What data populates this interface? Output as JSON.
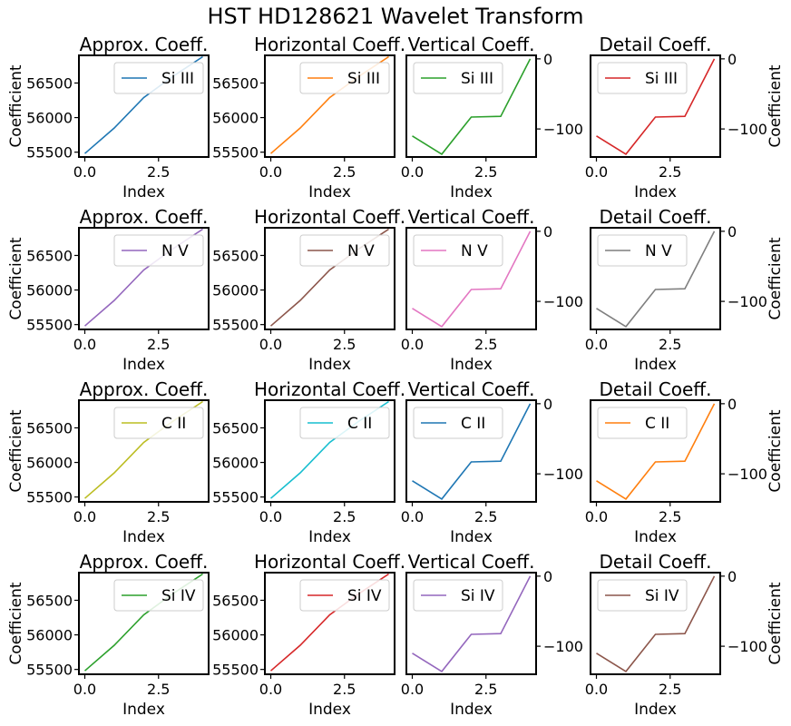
{
  "figure_title": "HST HD128621 Wavelet Transform",
  "chart_data": [
    {
      "type": "line",
      "title": "Approx. Coeff.",
      "xlabel": "Index",
      "ylabel": "Coefficient",
      "ylim": [
        55430,
        56900
      ],
      "yticks": [
        55500,
        56000,
        56500
      ],
      "xlim": [
        -0.2,
        4.2
      ],
      "xticks": [
        0,
        2.5
      ],
      "y_axis_side": "left",
      "legend": "top-right",
      "series": [
        {
          "name": "Si III",
          "color": "#1f77b4",
          "x": [
            0,
            1,
            2,
            3,
            4
          ],
          "y": [
            55480,
            55850,
            56290,
            56600,
            56880
          ]
        }
      ]
    },
    {
      "type": "line",
      "title": "Horizontal Coeff.",
      "xlabel": "Index",
      "ylabel": "",
      "ylim": [
        55430,
        56900
      ],
      "yticks": [
        55500,
        56000,
        56500
      ],
      "xlim": [
        -0.2,
        4.2
      ],
      "xticks": [
        0,
        2.5
      ],
      "y_axis_side": "left",
      "legend": "top-right",
      "series": [
        {
          "name": "Si III",
          "color": "#ff7f0e",
          "x": [
            0,
            1,
            2,
            3,
            4
          ],
          "y": [
            55480,
            55850,
            56290,
            56600,
            56880
          ]
        }
      ]
    },
    {
      "type": "line",
      "title": "Vertical Coeff.",
      "xlabel": "Index",
      "ylabel": "",
      "ylim": [
        -140,
        5
      ],
      "yticks": [
        -100,
        0
      ],
      "xlim": [
        -0.2,
        4.2
      ],
      "xticks": [
        0,
        2.5
      ],
      "y_axis_side": "right",
      "legend": "top-left",
      "series": [
        {
          "name": "Si III",
          "color": "#2ca02c",
          "x": [
            0,
            1,
            2,
            3,
            4
          ],
          "y": [
            -110,
            -136,
            -83,
            -82,
            0
          ]
        }
      ]
    },
    {
      "type": "line",
      "title": "Detail Coeff.",
      "xlabel": "Index",
      "ylabel": "Coefficient",
      "ylim": [
        -140,
        5
      ],
      "yticks": [
        -100,
        0
      ],
      "xlim": [
        -0.2,
        4.2
      ],
      "xticks": [
        0,
        2.5
      ],
      "y_axis_side": "right",
      "legend": "top-left",
      "series": [
        {
          "name": "Si III",
          "color": "#d62728",
          "x": [
            0,
            1,
            2,
            3,
            4
          ],
          "y": [
            -110,
            -136,
            -83,
            -82,
            0
          ]
        }
      ]
    },
    {
      "type": "line",
      "title": "Approx. Coeff.",
      "xlabel": "Index",
      "ylabel": "Coefficient",
      "ylim": [
        55430,
        56900
      ],
      "yticks": [
        55500,
        56000,
        56500
      ],
      "xlim": [
        -0.2,
        4.2
      ],
      "xticks": [
        0,
        2.5
      ],
      "y_axis_side": "left",
      "legend": "top-right",
      "series": [
        {
          "name": "N V",
          "color": "#9467bd",
          "x": [
            0,
            1,
            2,
            3,
            4
          ],
          "y": [
            55480,
            55850,
            56290,
            56600,
            56880
          ]
        }
      ]
    },
    {
      "type": "line",
      "title": "Horizontal Coeff.",
      "xlabel": "Index",
      "ylabel": "",
      "ylim": [
        55430,
        56900
      ],
      "yticks": [
        55500,
        56000,
        56500
      ],
      "xlim": [
        -0.2,
        4.2
      ],
      "xticks": [
        0,
        2.5
      ],
      "y_axis_side": "left",
      "legend": "top-right",
      "series": [
        {
          "name": "N V",
          "color": "#8c564b",
          "x": [
            0,
            1,
            2,
            3,
            4
          ],
          "y": [
            55480,
            55850,
            56290,
            56600,
            56880
          ]
        }
      ]
    },
    {
      "type": "line",
      "title": "Vertical Coeff.",
      "xlabel": "Index",
      "ylabel": "",
      "ylim": [
        -140,
        5
      ],
      "yticks": [
        -100,
        0
      ],
      "xlim": [
        -0.2,
        4.2
      ],
      "xticks": [
        0,
        2.5
      ],
      "y_axis_side": "right",
      "legend": "top-left",
      "series": [
        {
          "name": "N V",
          "color": "#e377c2",
          "x": [
            0,
            1,
            2,
            3,
            4
          ],
          "y": [
            -110,
            -136,
            -83,
            -82,
            0
          ]
        }
      ]
    },
    {
      "type": "line",
      "title": "Detail Coeff.",
      "xlabel": "Index",
      "ylabel": "Coefficient",
      "ylim": [
        -140,
        5
      ],
      "yticks": [
        -100,
        0
      ],
      "xlim": [
        -0.2,
        4.2
      ],
      "xticks": [
        0,
        2.5
      ],
      "y_axis_side": "right",
      "legend": "top-left",
      "series": [
        {
          "name": "N V",
          "color": "#7f7f7f",
          "x": [
            0,
            1,
            2,
            3,
            4
          ],
          "y": [
            -110,
            -136,
            -83,
            -82,
            0
          ]
        }
      ]
    },
    {
      "type": "line",
      "title": "Approx. Coeff.",
      "xlabel": "Index",
      "ylabel": "Coefficient",
      "ylim": [
        55430,
        56900
      ],
      "yticks": [
        55500,
        56000,
        56500
      ],
      "xlim": [
        -0.2,
        4.2
      ],
      "xticks": [
        0,
        2.5
      ],
      "y_axis_side": "left",
      "legend": "top-right",
      "series": [
        {
          "name": "C II",
          "color": "#bcbd22",
          "x": [
            0,
            1,
            2,
            3,
            4
          ],
          "y": [
            55480,
            55850,
            56290,
            56600,
            56880
          ]
        }
      ]
    },
    {
      "type": "line",
      "title": "Horizontal Coeff.",
      "xlabel": "Index",
      "ylabel": "",
      "ylim": [
        55430,
        56900
      ],
      "yticks": [
        55500,
        56000,
        56500
      ],
      "xlim": [
        -0.2,
        4.2
      ],
      "xticks": [
        0,
        2.5
      ],
      "y_axis_side": "left",
      "legend": "top-right",
      "series": [
        {
          "name": "C II",
          "color": "#17becf",
          "x": [
            0,
            1,
            2,
            3,
            4
          ],
          "y": [
            55480,
            55850,
            56290,
            56600,
            56880
          ]
        }
      ]
    },
    {
      "type": "line",
      "title": "Vertical Coeff.",
      "xlabel": "Index",
      "ylabel": "",
      "ylim": [
        -140,
        5
      ],
      "yticks": [
        -100,
        0
      ],
      "xlim": [
        -0.2,
        4.2
      ],
      "xticks": [
        0,
        2.5
      ],
      "y_axis_side": "right",
      "legend": "top-left",
      "series": [
        {
          "name": "C II",
          "color": "#1f77b4",
          "x": [
            0,
            1,
            2,
            3,
            4
          ],
          "y": [
            -110,
            -136,
            -83,
            -82,
            0
          ]
        }
      ]
    },
    {
      "type": "line",
      "title": "Detail Coeff.",
      "xlabel": "Index",
      "ylabel": "Coefficient",
      "ylim": [
        -140,
        5
      ],
      "yticks": [
        -100,
        0
      ],
      "xlim": [
        -0.2,
        4.2
      ],
      "xticks": [
        0,
        2.5
      ],
      "y_axis_side": "right",
      "legend": "top-left",
      "series": [
        {
          "name": "C II",
          "color": "#ff7f0e",
          "x": [
            0,
            1,
            2,
            3,
            4
          ],
          "y": [
            -110,
            -136,
            -83,
            -82,
            0
          ]
        }
      ]
    },
    {
      "type": "line",
      "title": "Approx. Coeff.",
      "xlabel": "Index",
      "ylabel": "Coefficient",
      "ylim": [
        55430,
        56900
      ],
      "yticks": [
        55500,
        56000,
        56500
      ],
      "xlim": [
        -0.2,
        4.2
      ],
      "xticks": [
        0,
        2.5
      ],
      "y_axis_side": "left",
      "legend": "top-right",
      "series": [
        {
          "name": "Si IV",
          "color": "#2ca02c",
          "x": [
            0,
            1,
            2,
            3,
            4
          ],
          "y": [
            55480,
            55850,
            56290,
            56600,
            56880
          ]
        }
      ]
    },
    {
      "type": "line",
      "title": "Horizontal Coeff.",
      "xlabel": "Index",
      "ylabel": "",
      "ylim": [
        55430,
        56900
      ],
      "yticks": [
        55500,
        56000,
        56500
      ],
      "xlim": [
        -0.2,
        4.2
      ],
      "xticks": [
        0,
        2.5
      ],
      "y_axis_side": "left",
      "legend": "top-right",
      "series": [
        {
          "name": "Si IV",
          "color": "#d62728",
          "x": [
            0,
            1,
            2,
            3,
            4
          ],
          "y": [
            55480,
            55850,
            56290,
            56600,
            56880
          ]
        }
      ]
    },
    {
      "type": "line",
      "title": "Vertical Coeff.",
      "xlabel": "Index",
      "ylabel": "",
      "ylim": [
        -140,
        5
      ],
      "yticks": [
        -100,
        0
      ],
      "xlim": [
        -0.2,
        4.2
      ],
      "xticks": [
        0,
        2.5
      ],
      "y_axis_side": "right",
      "legend": "top-left",
      "series": [
        {
          "name": "Si IV",
          "color": "#9467bd",
          "x": [
            0,
            1,
            2,
            3,
            4
          ],
          "y": [
            -110,
            -136,
            -83,
            -82,
            0
          ]
        }
      ]
    },
    {
      "type": "line",
      "title": "Detail Coeff.",
      "xlabel": "Index",
      "ylabel": "Coefficient",
      "ylim": [
        -140,
        5
      ],
      "yticks": [
        -100,
        0
      ],
      "xlim": [
        -0.2,
        4.2
      ],
      "xticks": [
        0,
        2.5
      ],
      "y_axis_side": "right",
      "legend": "top-left",
      "series": [
        {
          "name": "Si IV",
          "color": "#8c564b",
          "x": [
            0,
            1,
            2,
            3,
            4
          ],
          "y": [
            -110,
            -136,
            -83,
            -82,
            0
          ]
        }
      ]
    }
  ]
}
